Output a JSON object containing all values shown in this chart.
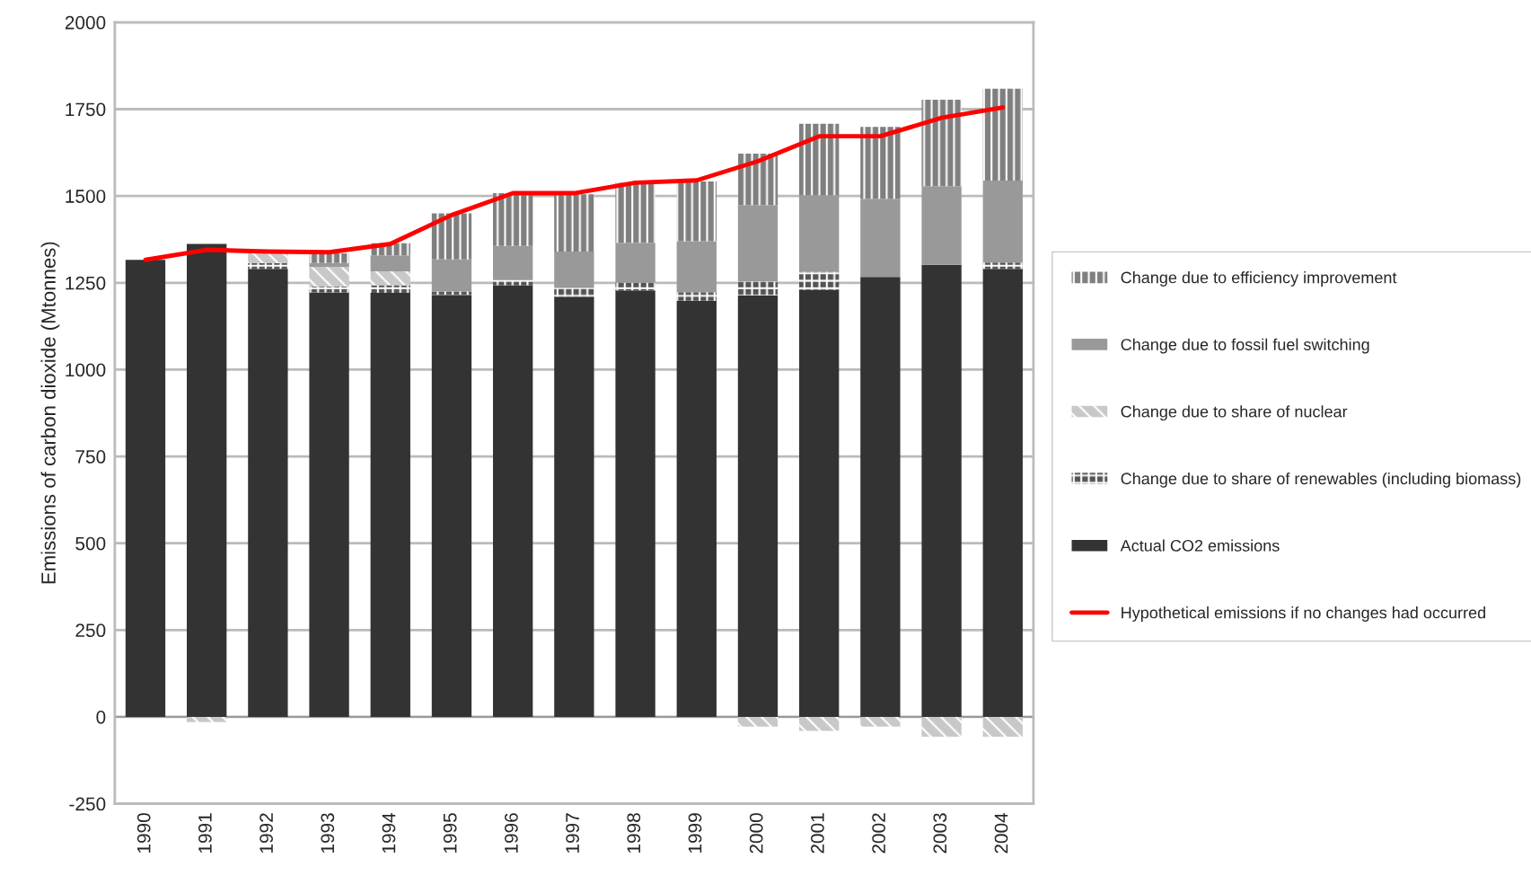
{
  "chart_data": {
    "type": "bar",
    "stacked": true,
    "ylabel": "Emissions of carbon dioxide (Mtonnes)",
    "categories": [
      "1990",
      "1991",
      "1992",
      "1993",
      "1994",
      "1995",
      "1996",
      "1997",
      "1998",
      "1999",
      "2000",
      "2001",
      "2002",
      "2003",
      "2004"
    ],
    "series": [
      {
        "name": "Actual CO2 emissions",
        "color": "#333333",
        "values": [
          1316,
          1362,
          1290,
          1222,
          1221,
          1215,
          1243,
          1210,
          1228,
          1198,
          1214,
          1230,
          1267,
          1302,
          1290
        ]
      },
      {
        "name": "Change due to share of renewables (including biomass)",
        "color": "#555555",
        "values": [
          0,
          0,
          17,
          18,
          22,
          10,
          15,
          25,
          22,
          25,
          40,
          52,
          0,
          0,
          18
        ]
      },
      {
        "name": "Change due to share of nuclear",
        "color": "#c8c8c8",
        "values": [
          0,
          -15,
          30,
          55,
          40,
          0,
          0,
          0,
          0,
          0,
          -28,
          -40,
          -28,
          -57,
          -57
        ]
      },
      {
        "name": "Change due to fossil fuel switching",
        "color": "#999999",
        "values": [
          0,
          0,
          0,
          12,
          46,
          92,
          98,
          105,
          115,
          147,
          220,
          220,
          225,
          226,
          236
        ]
      },
      {
        "name": "Change due to efficiency improvement",
        "color": "#7f7f7f",
        "values": [
          0,
          0,
          0,
          28,
          35,
          133,
          152,
          165,
          173,
          172,
          148,
          206,
          207,
          249,
          265
        ]
      },
      {
        "name": "Hypothetical emissions if no changes had occurred",
        "type": "line",
        "color": "#ff0000",
        "values": [
          1316,
          1345,
          1340,
          1338,
          1362,
          1445,
          1508,
          1508,
          1538,
          1545,
          1600,
          1672,
          1672,
          1725,
          1755
        ]
      }
    ],
    "ylim": [
      -250,
      2000
    ],
    "yticks": [
      -250,
      0,
      250,
      500,
      750,
      1000,
      1250,
      1500,
      1750,
      2000
    ],
    "grid": "y",
    "legend": "right"
  }
}
